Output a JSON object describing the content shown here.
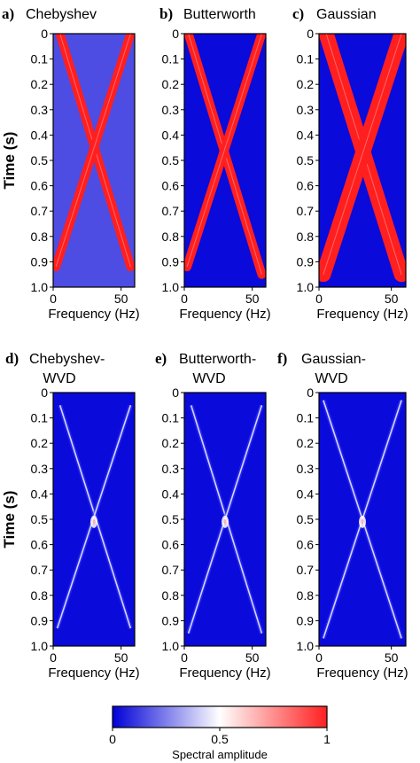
{
  "chart_data": [
    {
      "type": "heatmap",
      "panel_label": "a)",
      "title": [
        "Chebyshev"
      ],
      "xlabel": "Frequency (Hz)",
      "ylabel": "Time (s)",
      "x_ticks": [
        "0",
        "50"
      ],
      "y_ticks": [
        "0",
        "0.1",
        "0.2",
        "0.3",
        "0.4",
        "0.5",
        "0.6",
        "0.7",
        "0.8",
        "0.9",
        "1.0"
      ],
      "xlim": [
        0,
        60
      ],
      "ylim": [
        0,
        1.0
      ],
      "background_amplitude": 0.15,
      "ridges": [
        {
          "from": [
            5,
            0.0
          ],
          "to": [
            57,
            0.92
          ],
          "amplitude": 1.0
        },
        {
          "from": [
            57,
            0.0
          ],
          "to": [
            2,
            0.92
          ],
          "amplitude": 1.0
        }
      ]
    },
    {
      "type": "heatmap",
      "panel_label": "b)",
      "title": [
        "Butterworth"
      ],
      "xlabel": "Frequency (Hz)",
      "ylabel": "",
      "x_ticks": [
        "0",
        "50"
      ],
      "y_ticks": [
        "0",
        "0.1",
        "0.2",
        "0.3",
        "0.4",
        "0.5",
        "0.6",
        "0.7",
        "0.8",
        "0.9",
        "1.0"
      ],
      "xlim": [
        0,
        60
      ],
      "ylim": [
        0,
        1.0
      ],
      "background_amplitude": 0.02,
      "ridges": [
        {
          "from": [
            3,
            0.0
          ],
          "to": [
            57,
            0.95
          ],
          "amplitude": 1.0
        },
        {
          "from": [
            57,
            0.0
          ],
          "to": [
            2,
            0.92
          ],
          "amplitude": 1.0
        }
      ]
    },
    {
      "type": "heatmap",
      "panel_label": "c)",
      "title": [
        "Gaussian"
      ],
      "xlabel": "Frequency (Hz)",
      "ylabel": "",
      "x_ticks": [
        "0",
        "50"
      ],
      "y_ticks": [
        "0",
        "0.1",
        "0.2",
        "0.3",
        "0.4",
        "0.5",
        "0.6",
        "0.7",
        "0.8",
        "0.9",
        "1.0"
      ],
      "xlim": [
        0,
        60
      ],
      "ylim": [
        0,
        1.0
      ],
      "background_amplitude": 0.02,
      "ridges": [
        {
          "from": [
            5,
            0.0
          ],
          "to": [
            57,
            0.95
          ],
          "amplitude": 1.0
        },
        {
          "from": [
            57,
            0.0
          ],
          "to": [
            3,
            0.95
          ],
          "amplitude": 1.0
        }
      ]
    },
    {
      "type": "heatmap",
      "panel_label": "d)",
      "title": [
        "Chebyshev-",
        "WVD"
      ],
      "xlabel": "Frequency (Hz)",
      "ylabel": "Time (s)",
      "x_ticks": [
        "0",
        "50"
      ],
      "y_ticks": [
        "0",
        "0.1",
        "0.2",
        "0.3",
        "0.4",
        "0.5",
        "0.6",
        "0.7",
        "0.8",
        "0.9",
        "1.0"
      ],
      "xlim": [
        0,
        60
      ],
      "ylim": [
        0,
        1.0
      ],
      "background_amplitude": 0.02,
      "ridges": [
        {
          "from": [
            5,
            0.05
          ],
          "to": [
            57,
            0.93
          ],
          "amplitude": 0.5
        },
        {
          "from": [
            57,
            0.05
          ],
          "to": [
            3,
            0.93
          ],
          "amplitude": 0.5
        }
      ]
    },
    {
      "type": "heatmap",
      "panel_label": "e)",
      "title": [
        "Butterworth-",
        "WVD"
      ],
      "xlabel": "Frequency (Hz)",
      "ylabel": "",
      "x_ticks": [
        "0",
        "50"
      ],
      "y_ticks": [
        "0",
        "0.1",
        "0.2",
        "0.3",
        "0.4",
        "0.5",
        "0.6",
        "0.7",
        "0.8",
        "0.9",
        "1.0"
      ],
      "xlim": [
        0,
        60
      ],
      "ylim": [
        0,
        1.0
      ],
      "background_amplitude": 0.02,
      "ridges": [
        {
          "from": [
            5,
            0.05
          ],
          "to": [
            57,
            0.95
          ],
          "amplitude": 0.5
        },
        {
          "from": [
            57,
            0.05
          ],
          "to": [
            3,
            0.95
          ],
          "amplitude": 0.5
        }
      ]
    },
    {
      "type": "heatmap",
      "panel_label": "f)",
      "title": [
        "Gaussian-",
        "WVD"
      ],
      "xlabel": "Frequency (Hz)",
      "ylabel": "",
      "x_ticks": [
        "0",
        "50"
      ],
      "y_ticks": [
        "0",
        "0.1",
        "0.2",
        "0.3",
        "0.4",
        "0.5",
        "0.6",
        "0.7",
        "0.8",
        "0.9",
        "1.0"
      ],
      "xlim": [
        0,
        60
      ],
      "ylim": [
        0,
        1.0
      ],
      "background_amplitude": 0.02,
      "ridges": [
        {
          "from": [
            3,
            0.03
          ],
          "to": [
            57,
            0.97
          ],
          "amplitude": 0.5
        },
        {
          "from": [
            57,
            0.03
          ],
          "to": [
            3,
            0.97
          ],
          "amplitude": 0.5
        }
      ]
    }
  ],
  "colorbar": {
    "label": "Spectral amplitude",
    "ticks": [
      "0",
      "0.5",
      "1"
    ],
    "range": [
      0,
      1
    ],
    "colors": [
      "#0000d8",
      "#ffffff",
      "#ff1f1f"
    ]
  }
}
